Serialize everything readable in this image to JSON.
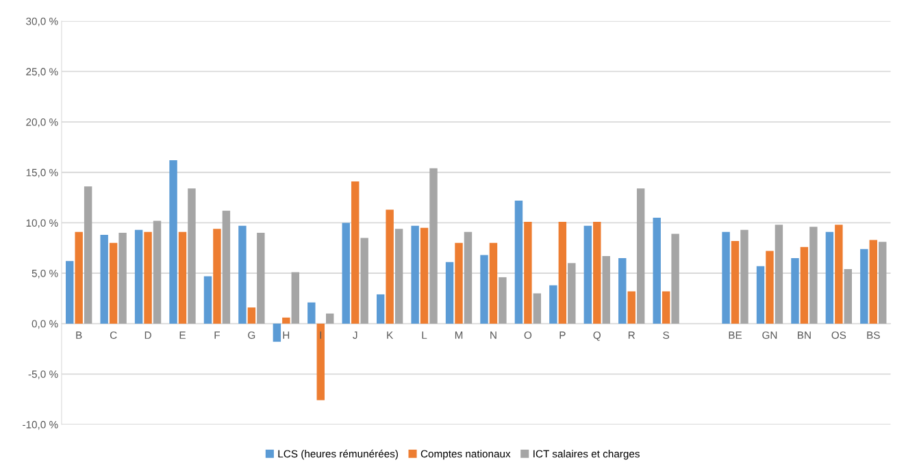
{
  "chart_data": {
    "type": "bar",
    "categories": [
      "B",
      "C",
      "D",
      "E",
      "F",
      "G",
      "H",
      "I",
      "J",
      "K",
      "L",
      "M",
      "N",
      "O",
      "P",
      "Q",
      "R",
      "S",
      null,
      "BE",
      "GN",
      "BN",
      "OS",
      "BS"
    ],
    "series": [
      {
        "name": "LCS (heures rémunérées)",
        "color": "#5b9bd5",
        "values": [
          6.2,
          8.8,
          9.3,
          16.2,
          4.7,
          9.7,
          -1.8,
          2.1,
          10.0,
          2.9,
          9.7,
          6.1,
          6.8,
          12.2,
          3.8,
          9.7,
          6.5,
          10.5,
          null,
          9.1,
          5.7,
          6.5,
          9.1,
          7.4
        ]
      },
      {
        "name": "Comptes nationaux",
        "color": "#ed7d31",
        "values": [
          9.1,
          8.0,
          9.1,
          9.1,
          9.4,
          1.6,
          0.6,
          -7.6,
          14.1,
          11.3,
          9.5,
          8.0,
          8.0,
          10.1,
          10.1,
          10.1,
          3.2,
          3.2,
          null,
          8.2,
          7.2,
          7.6,
          9.8,
          8.3
        ]
      },
      {
        "name": "ICT salaires et charges",
        "color": "#a5a5a5",
        "values": [
          13.6,
          9.0,
          10.2,
          13.4,
          11.2,
          9.0,
          5.1,
          1.0,
          8.5,
          9.4,
          15.4,
          9.1,
          4.6,
          3.0,
          6.0,
          6.7,
          13.4,
          8.9,
          null,
          9.3,
          9.8,
          9.6,
          5.4,
          8.1
        ]
      }
    ],
    "ylim": [
      -10,
      30
    ],
    "yticks": [
      {
        "value": -10,
        "label": "-10,0 %"
      },
      {
        "value": -5,
        "label": "-5,0 %"
      },
      {
        "value": 0,
        "label": "0,0 %"
      },
      {
        "value": 5,
        "label": "5,0 %"
      },
      {
        "value": 10,
        "label": "10,0 %"
      },
      {
        "value": 15,
        "label": "15,0 %"
      },
      {
        "value": 20,
        "label": "20,0 %"
      },
      {
        "value": 25,
        "label": "25,0 %"
      },
      {
        "value": 30,
        "label": "30,0 %"
      }
    ],
    "grid": "y",
    "legend": "bottom"
  }
}
